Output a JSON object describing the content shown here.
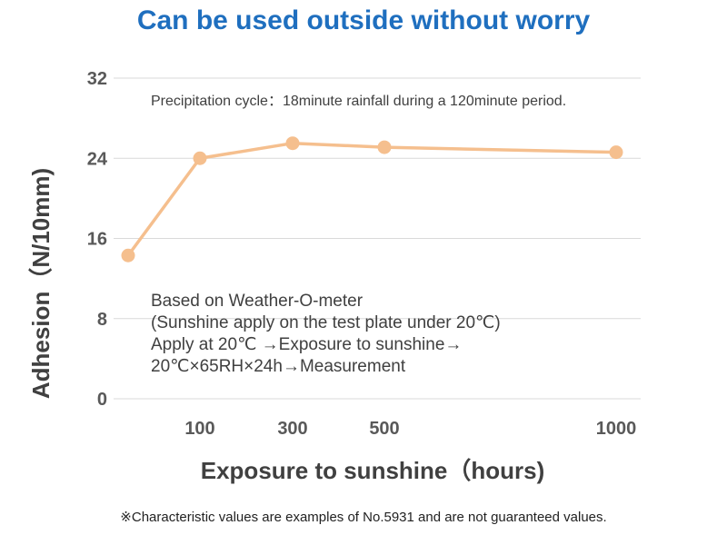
{
  "title": "Can be used outside without worry",
  "footnote": "※Characteristic values are examples of No.5931 and are not guaranteed values.",
  "colors": {
    "title": "#1f6fbf",
    "series": "#f5bf8e",
    "grid": "#d9d9d9",
    "axis_text": "#595959"
  },
  "chart_data": {
    "type": "line",
    "title": "",
    "xlabel": "Exposure to sunshine（hours)",
    "ylabel": "Adhesion（N/10mm)",
    "ylim": [
      0,
      32
    ],
    "yticks": [
      "0",
      "8",
      "16",
      "24",
      "32"
    ],
    "xticks": [
      "100",
      "300",
      "500",
      "1000"
    ],
    "grid": true,
    "legend": "none",
    "series": [
      {
        "name": "",
        "points": [
          {
            "x": 0,
            "y": 14.3
          },
          {
            "x": 100,
            "y": 24.0
          },
          {
            "x": 300,
            "y": 25.5
          },
          {
            "x": 500,
            "y": 25.1
          },
          {
            "x": 1000,
            "y": 24.6
          }
        ]
      }
    ],
    "annotations": {
      "cycle": "Precipitation cycle：18minute rainfall during a 120minute period.",
      "conditions": [
        "Based on Weather-O-meter",
        "(Sunshine apply on the test plate under 20℃)",
        "Apply at 20℃ →Exposure to sunshine→",
        "20℃×65RH×24h→Measurement"
      ]
    }
  }
}
